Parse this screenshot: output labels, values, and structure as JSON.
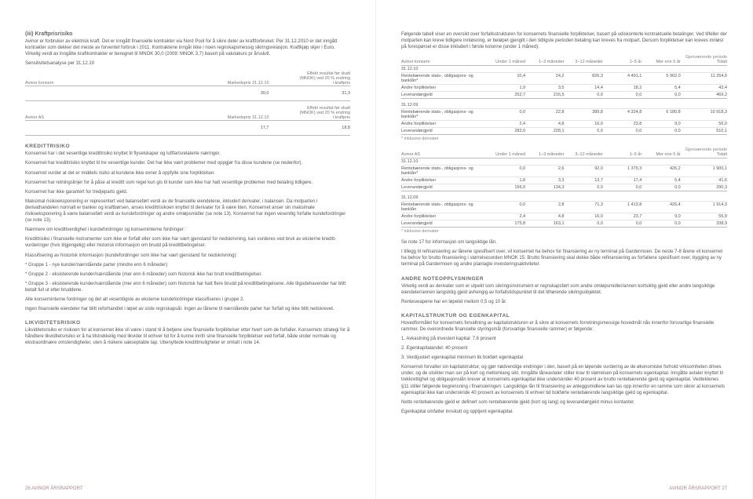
{
  "left": {
    "section1_title": "(iii) Kraftprisrisiko",
    "section1_p1": "Avinor er forbruker av elektrisk kraft. Det er inngått finansielle kontrakter via Nord Pool for å sikre deler av kraftforbruket. Per 31.12.2010 er det inngått kontrakter som dekker det meste av forventet forbruk i 2011. Kontraktene inngår ikke i noen regnskapsmessig sikringsrelasjon. Kraftkjøp skjer i Euro. Virkelig verdi av inngåtte kraftkontrakter er beregnet til MNOK 30,0 (2009: MNOK 3,7) basert på valutakurs pr årsslutt.",
    "sens_title": "Sensitivitetsanalyse per 31.12.10",
    "sens_header_right1": "Effekt resultat før skatt",
    "sens_header_right2": "(MNOK) ved 20 % endring",
    "sens_header_right3": "i kraftpris",
    "sens_col1": "Avinor konsern",
    "sens_col2": "Markedspris 31.12.10",
    "sens_r1_v1": "30,0",
    "sens_r1_v2": "31,3",
    "sens_col1b": "Avinor AS",
    "sens_r2_v1": "17,7",
    "sens_r2_v2": "18,8",
    "kreditt_title": "KREDITTRISIKO",
    "kreditt_p1": "Konsernet har i det vesentlige kredittrisiko knyttet til flyselskaper og luftfartsrelaterte næringer.",
    "kreditt_p2": "Konsernet har kredittrisiko knyttet til tre vesentlige kunder. Det har ikke vært problemer med oppgjør fra disse kundene (se nedenfor).",
    "kreditt_p3": "Konsernet vurder at det er middels risiko at kundene ikke evner å oppfylle sine forpliktelser.",
    "kreditt_p4": "Konsernet har retningslinjer for å påse at kreditt som regel kun gis til kunder som ikke har hatt vesentlige problemer med betaling tidligere.",
    "kreditt_p5": "Konsernet har ikke garantert for tredjeparts gjeld.",
    "kreditt_p6": "Maksimal risikoeksponering er representert ved balanseført verdi av de finansielle eiendelene, inkludert derivater, i balansen. Da motparten i derivathandelen normalt er banker og kraftbørsen, anses kredittrisikoen knyttet til derivater for å være liten. Konsernet anser sin maksimale risikoeksponering å være balanseført verdi av kundefordringer og andre omløpsmidler (se note 13). Konsernet har ingen vesentlig forfalte kundefordringer (se note 13).",
    "kreditt_p7": "Nærmere om kredittverdighet i kundefordringer og konserninterne fordringer:",
    "kreditt_p8": "Kredittrisiko i finansielle instrumenter som ikke er forfalt eller som ikke har vært gjenstand for nedskrivning, kan vurderes ved bruk av eksterne kreditt-vurderinger (hvis tilgjengelig) eller historisk informasjon om brudd på kredittbetingelser.",
    "kreditt_p9": "Klassifisering av historisk informasjon (kundefordringer som ikke har vært gjenstand for nedskrivning):",
    "kreditt_l1": "* Gruppe 1 - nye kunder/nærstående parter (mindre enn 6 måneder)",
    "kreditt_l2": "* Gruppe 2 - eksisterende kunder/nærstående (mer enn 6 måneder) som historisk ikke har brutt kredittbetingelser.",
    "kreditt_l3": "* Gruppe 3 - eksisterende kunder/nærstående (mer enn 6 måneder) som historisk har hatt flere brudd på kredittbetingelsene. Alle tilgodehavender har blitt betalt full ut etter bruddene.",
    "kreditt_p10": "Alle konserninterne fordringer og det alt vesentligste av eksterne kundefordringer klassifiseres i gruppe 2.",
    "kreditt_p11": "Ingen finansielle eiendeler har blitt reforhandlet i løpet av siste regnskapsår. Ingen av lånene til nærstående parter har forfalt og ikke blitt nedskrevet.",
    "likv_title": "LIKVIDITETSRISIKO",
    "likv_p1": "Likviditetsrisiko er risikoen for at konsernet ikke vil være i stand til å betjene sine finansielle forpliktelser etter hvert som de forfaller. Konsernets strategi for å håndtere likviditetsrisiko er å ha tilstrekkelig med likvider til enhver tid for å kunne innfri sine finansielle forpliktelser ved forfall, både under normale og ekstraordinære omstendigheter, uten å risikere uakseptable tap. Ubenyttede kredittmuligheter er omtalt i note 14.",
    "footer": "26  AVINOR ÅRSRAPPORT"
  },
  "right": {
    "intro": "Følgende tabell viser en oversikt over forfallsstrukturen for konsernets finansielle forpliktelser, basert på udiskonterte kontraktuelle betalinger. Ved tilfeller der motparten kan kreve tidligere innløsning, er beløpet gjengitt i den tidligste perioden betaling kan kreves fra motpart. Dersom forpliktelser kan kreves innløst på forespørsel er disse inkludert i første kolonne (under 1 måned):",
    "period_label": "Gjenværende periode",
    "cols": [
      "",
      "Under 1 måned",
      "1–3 måneder",
      "3–12 måneder",
      "1–5 år",
      "Mer enn 5 år",
      "Totalt"
    ],
    "t1_title": "Avinor konsern",
    "t1_sec1": "31.12.10",
    "t1_r1": [
      "Rentebærende stats-, obligasjons- og banklån*",
      "10,4",
      "24,2",
      "826,3",
      "4 491,1",
      "5 902,0",
      "11 254,0"
    ],
    "t1_r2": [
      "Andre forpliktelser",
      "1,9",
      "3,5",
      "14,4",
      "18,2",
      "5,4",
      "43,4"
    ],
    "t1_r3": [
      "Leverandørgjeld",
      "252,7",
      "216,5",
      "0,0",
      "0,0",
      "0,0",
      "469,2"
    ],
    "t1_sec2": "31.12.09",
    "t1_r4": [
      "Rentebærende stats-, obligasjons- og banklån*",
      "0,0",
      "22,8",
      "389,8",
      "4 324,8",
      "6 180,8",
      "10 918,3"
    ],
    "t1_r5": [
      "Andre forpliktelser",
      "2,4",
      "4,8",
      "16,0",
      "23,8",
      "9,0",
      "56,0"
    ],
    "t1_r6": [
      "Leverandørgjeld",
      "282,0",
      "228,1",
      "0,0",
      "0,0",
      "0,0",
      "510,1"
    ],
    "note_deriv": "* inklusive derivater",
    "t2_title": "Avinor AS",
    "t2_sec1": "31.12.10",
    "t2_r1": [
      "Rentebærende stats-, obligasjons- og banklån*",
      "0,0",
      "2,6",
      "92,0",
      "1 379,3",
      "426,2",
      "1 900,1"
    ],
    "t2_r2": [
      "Andre forpliktelser",
      "1,8",
      "3,3",
      "13,7",
      "17,4",
      "5,4",
      "41,6"
    ],
    "t2_r3": [
      "Leverandørgjeld",
      "156,0",
      "134,3",
      "0,0",
      "0,0",
      "0,0",
      "290,3"
    ],
    "t2_sec2": "31.12.09",
    "t2_r4": [
      "Rentebærende stats-, obligasjons- og banklån",
      "0,0",
      "2,8",
      "71,3",
      "1 413,8",
      "426,4",
      "1 914,3"
    ],
    "t2_r5": [
      "Andre forpliktelser",
      "2,4",
      "4,8",
      "16,0",
      "23,7",
      "9,0",
      "55,9"
    ],
    "t2_r6": [
      "Leverandørgjeld",
      "175,8",
      "163,1",
      "0,0",
      "0,0",
      "0,0",
      "338,9"
    ],
    "note17": "Se note 17 for informasjon om langsiktige lån.",
    "fin_p1": "I tillegg til refinansiering av lånene spesifisert over, vil konsernet ha behov for finansiering av ny terminal på Gardermoen. De neste 7-8 årene vil konsernet ha behov for brutto finansiering i størrelsesorden MNOK 15. Brutto finansiering skal dekke både refinansiering av forfallene spesifisert over, bygging av ny terminal på Gardermoen og andre planlagte investeringsaktiviteter.",
    "note_title": "ANDRE NOTEOPPLYSNINGER",
    "note_p1": "Virkelig verdi av derivater som er utpekt som sikringsinstrument er regnskapsført som andre omløpsmidler/annen kortsiktig gjeld eller andre langsiktige eiendeler/annen langsiktig gjeld avhengig av forfallstidspunktet til det tilhørende sikringsobjektet.",
    "note_p2": "Renteswapene har en løpetid mellom 0,5 og 10 år.",
    "kap_title": "KAPITALSTRUKTUR OG EGENKAPITAL",
    "kap_p1": "Hovedformålet for konsernets forvaltning av kapitalstrukturen er å sikre at konsernets forretningsmessige hovedmål nås innenfor forsvarlige finansielle rammer. De overordnede finansielle styringsmål (forsvarlige finansielle rammer) er følgende:",
    "kap_l1": "1. Avkastning på investert kapital: 7,6 prosent",
    "kap_l2": "2. Egenkapitalandel: 40 prosent",
    "kap_l3": "3. Verdijustert egenkapital minimum lik bokført egenkapital",
    "kap_p2": "Konsernet forvalter sin kapitalstruktur, og gjør nødvendige endringer i den, basert på en løpende vurdering av de økonomiske forhold virksomheten drives under, og de utsikter man ser på kort og mellomlang sikt. Inngåtte låneavtaler stiller krav til størrelsen på konsernets egenkapital. Inngåtte avtaler knyttet til trekkrettighet og obligasjonslån krever at konsernets egenkapital ikke underskrider 40 prosent av brutto rentebærende gjeld og egenkapital. Vedtektenes §11 stiller følgende begrensning i finansieringen: Langsiktige lån til finansiering av anleggsmidlene kan tas opp innenfor en ramme som sikrer at konsernets egenkapital ikke kan underskride 40 prosent av konsernets til enhver tid bokførte rentebærende langsiktige gjeld og egenkapital.",
    "kap_p3": "Netto rentebærende gjeld er definert som rentebærende gjeld (kort og lang) og leverandørgjeld minus kontanter.",
    "kap_p4": "Egenkapital omfatter innskutt og opptjent egenkapital.",
    "footer": "AVINOR ÅRSRAPPORT  27"
  }
}
